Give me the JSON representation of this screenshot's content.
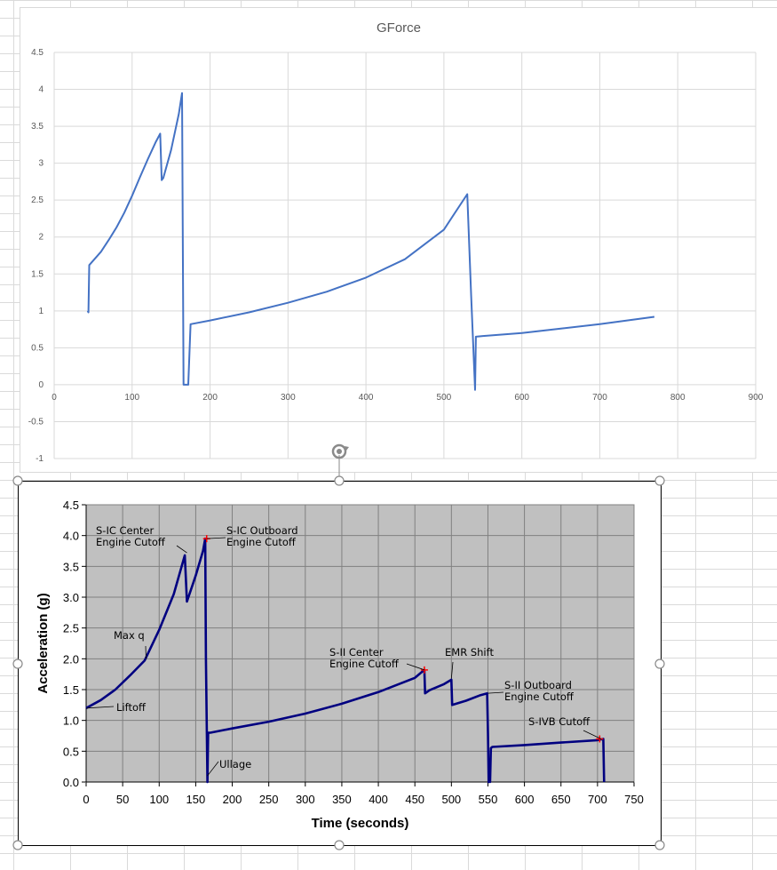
{
  "chart_data": [
    {
      "type": "line",
      "title": "GForce",
      "xlabel": "",
      "ylabel": "",
      "xlim": [
        0,
        900
      ],
      "ylim": [
        -1,
        4.5
      ],
      "xticks": [
        0,
        100,
        200,
        300,
        400,
        500,
        600,
        700,
        800,
        900
      ],
      "yticks": [
        4.5,
        4,
        3.5,
        3,
        2.5,
        2,
        1.5,
        1,
        0.5,
        0,
        -0.5,
        -1
      ],
      "grid": true,
      "series_color": "#4472c4",
      "series": [
        {
          "x": [
            43,
            44,
            45,
            50,
            60,
            70,
            80,
            90,
            100,
            110,
            120,
            130,
            136,
            138,
            140,
            150,
            160,
            164,
            166,
            169,
            172,
            175,
            200,
            250,
            300,
            350,
            400,
            450,
            500,
            530,
            535,
            540,
            541,
            550,
            600,
            650,
            700,
            770
          ],
          "y": [
            1.0,
            0.98,
            1.62,
            1.68,
            1.8,
            1.96,
            2.13,
            2.33,
            2.56,
            2.81,
            3.05,
            3.28,
            3.4,
            2.77,
            2.8,
            3.18,
            3.67,
            3.95,
            0.0,
            0.0,
            0.0,
            0.82,
            0.87,
            0.98,
            1.11,
            1.26,
            1.45,
            1.7,
            2.1,
            2.58,
            1.2,
            -0.07,
            0.65,
            0.66,
            0.7,
            0.76,
            0.82,
            0.92
          ]
        }
      ]
    },
    {
      "type": "line",
      "title": "",
      "xlabel": "Time (seconds)",
      "ylabel": "Acceleration (g)",
      "xlim": [
        0,
        750
      ],
      "ylim": [
        0.0,
        4.5
      ],
      "xticks": [
        "0",
        "50",
        "100",
        "150",
        "200",
        "250",
        "300",
        "350",
        "400",
        "450",
        "500",
        "550",
        "600",
        "650",
        "700",
        "750"
      ],
      "yticks": [
        "4.5",
        "4.0",
        "3.5",
        "3.0",
        "2.5",
        "2.0",
        "1.5",
        "1.0",
        "0.5",
        "0.0"
      ],
      "grid": true,
      "plot_background": "#c0c0c0",
      "series_color": "#000080",
      "marker_color": "#ff0000",
      "series": [
        {
          "x": [
            0,
            20,
            40,
            60,
            80,
            100,
            120,
            135,
            138,
            140,
            150,
            160,
            163,
            164,
            166,
            167,
            170,
            200,
            250,
            300,
            350,
            400,
            450,
            463,
            464,
            470,
            490,
            500,
            501,
            520,
            540,
            549,
            550,
            551,
            552,
            553,
            554,
            556,
            600,
            650,
            700,
            708,
            709
          ],
          "y": [
            1.2,
            1.33,
            1.5,
            1.73,
            1.97,
            2.47,
            3.05,
            3.68,
            2.93,
            3.0,
            3.35,
            3.75,
            3.95,
            2.0,
            0.0,
            0.8,
            0.8,
            0.87,
            0.98,
            1.11,
            1.27,
            1.46,
            1.69,
            1.82,
            1.44,
            1.49,
            1.59,
            1.66,
            1.25,
            1.32,
            1.41,
            1.44,
            0.8,
            0.0,
            0.3,
            0.0,
            0.55,
            0.57,
            0.6,
            0.64,
            0.68,
            0.7,
            0.0
          ]
        }
      ],
      "markers": [
        {
          "x": 165,
          "y": 3.95
        },
        {
          "x": 463,
          "y": 1.82
        },
        {
          "x": 703,
          "y": 0.7
        }
      ],
      "annotations": [
        {
          "lines": [
            "S-IC Center",
            "Engine Cutoff"
          ],
          "x": 138,
          "y": 3.72
        },
        {
          "lines": [
            "S-IC Outboard",
            "Engine Cutoff"
          ],
          "x": 165,
          "y": 3.95
        },
        {
          "lines": [
            "Max q"
          ],
          "x": 82,
          "y": 2.0
        },
        {
          "lines": [
            "Liftoff"
          ],
          "x": 1,
          "y": 1.2
        },
        {
          "lines": [
            "Ullage"
          ],
          "x": 166,
          "y": 0.1
        },
        {
          "lines": [
            "S-II Center",
            "Engine Cutoff"
          ],
          "x": 463,
          "y": 1.82
        },
        {
          "lines": [
            "EMR Shift"
          ],
          "x": 500,
          "y": 1.68
        },
        {
          "lines": [
            "S-II Outboard",
            "Engine Cutoff"
          ],
          "x": 550,
          "y": 1.44
        },
        {
          "lines": [
            "S-IVB Cutoff"
          ],
          "x": 705,
          "y": 0.7
        }
      ]
    }
  ]
}
